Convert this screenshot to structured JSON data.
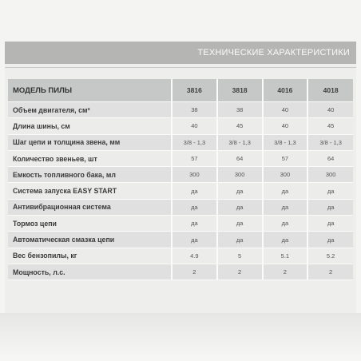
{
  "header": {
    "title": "ТЕХНИЧЕСКИЕ ХАРАКТЕРИСТИКИ"
  },
  "table": {
    "label_header": "МОДЕЛЬ ПИЛЫ",
    "models": [
      "3816",
      "3818",
      "4016",
      "4018"
    ],
    "rows": [
      {
        "label": "Объем двигателя, см³",
        "values": [
          "38",
          "38",
          "40",
          "40"
        ]
      },
      {
        "label": "Длина шины, см",
        "values": [
          "40",
          "45",
          "40",
          "45"
        ]
      },
      {
        "label": "Шаг цепи и толщина звена, мм",
        "values": [
          "3/8 - 1,3",
          "3/8 - 1,3",
          "3/8 - 1,3",
          "3/8 - 1,3"
        ]
      },
      {
        "label": "Количество звеньев, шт",
        "values": [
          "57",
          "64",
          "57",
          "64"
        ]
      },
      {
        "label": "Емкость топливного бака, мл",
        "values": [
          "300",
          "300",
          "300",
          "300"
        ]
      },
      {
        "label": "Система запуска EASY START",
        "values": [
          "да",
          "да",
          "да",
          "да"
        ]
      },
      {
        "label": "Антивибрационная система",
        "values": [
          "да",
          "да",
          "да",
          "да"
        ]
      },
      {
        "label": "Тормоз цепи",
        "values": [
          "да",
          "да",
          "да",
          "да"
        ]
      },
      {
        "label": "Автоматическая смазка цепи",
        "values": [
          "да",
          "да",
          "да",
          "да"
        ]
      },
      {
        "label": "Вес бензопилы, кг",
        "values": [
          "4.9",
          "5",
          "5.1",
          "5.2"
        ]
      },
      {
        "label": "Мощность, л.с.",
        "values": [
          "2",
          "2",
          "2",
          "2"
        ]
      }
    ]
  }
}
